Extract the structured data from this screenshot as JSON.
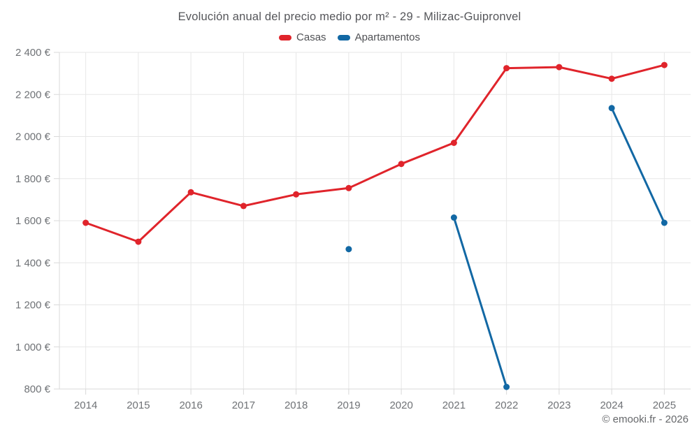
{
  "title": "Evolución anual del precio medio por m² - 29 - Milizac-Guipronvel",
  "footer": "© emooki.fr - 2026",
  "colors": {
    "casas": "#e0242b",
    "apartamentos": "#1268a4",
    "grid": "#e7e7e7",
    "axis": "#d9d9d9",
    "axis_text": "#6f7276",
    "title_text": "#55565a"
  },
  "chart_data": {
    "type": "line",
    "title": "Evolución anual del precio medio por m² - 29 - Milizac-Guipronvel",
    "categories": [
      "2014",
      "2015",
      "2016",
      "2017",
      "2018",
      "2019",
      "2020",
      "2021",
      "2022",
      "2023",
      "2024",
      "2025"
    ],
    "series": [
      {
        "name": "Casas",
        "color": "#e0242b",
        "values": [
          1590,
          1500,
          1735,
          1670,
          1725,
          1755,
          1870,
          1970,
          2325,
          2330,
          2275,
          2340
        ]
      },
      {
        "name": "Apartamentos",
        "color": "#1268a4",
        "values": [
          null,
          null,
          null,
          null,
          null,
          1465,
          null,
          1615,
          810,
          null,
          2135,
          1590
        ]
      }
    ],
    "ylim": [
      800,
      2400
    ],
    "y_ticks": [
      800,
      1000,
      1200,
      1400,
      1600,
      1800,
      2000,
      2200,
      2400
    ],
    "y_tick_labels": [
      "800 €",
      "1 000 €",
      "1 200 €",
      "1 400 €",
      "1 600 €",
      "1 800 €",
      "2 000 €",
      "2 200 €",
      "2 400 €"
    ],
    "xlabel": "",
    "ylabel": "",
    "grid": true,
    "legend_position": "top",
    "legend_entries": [
      "Casas",
      "Apartamentos"
    ]
  }
}
